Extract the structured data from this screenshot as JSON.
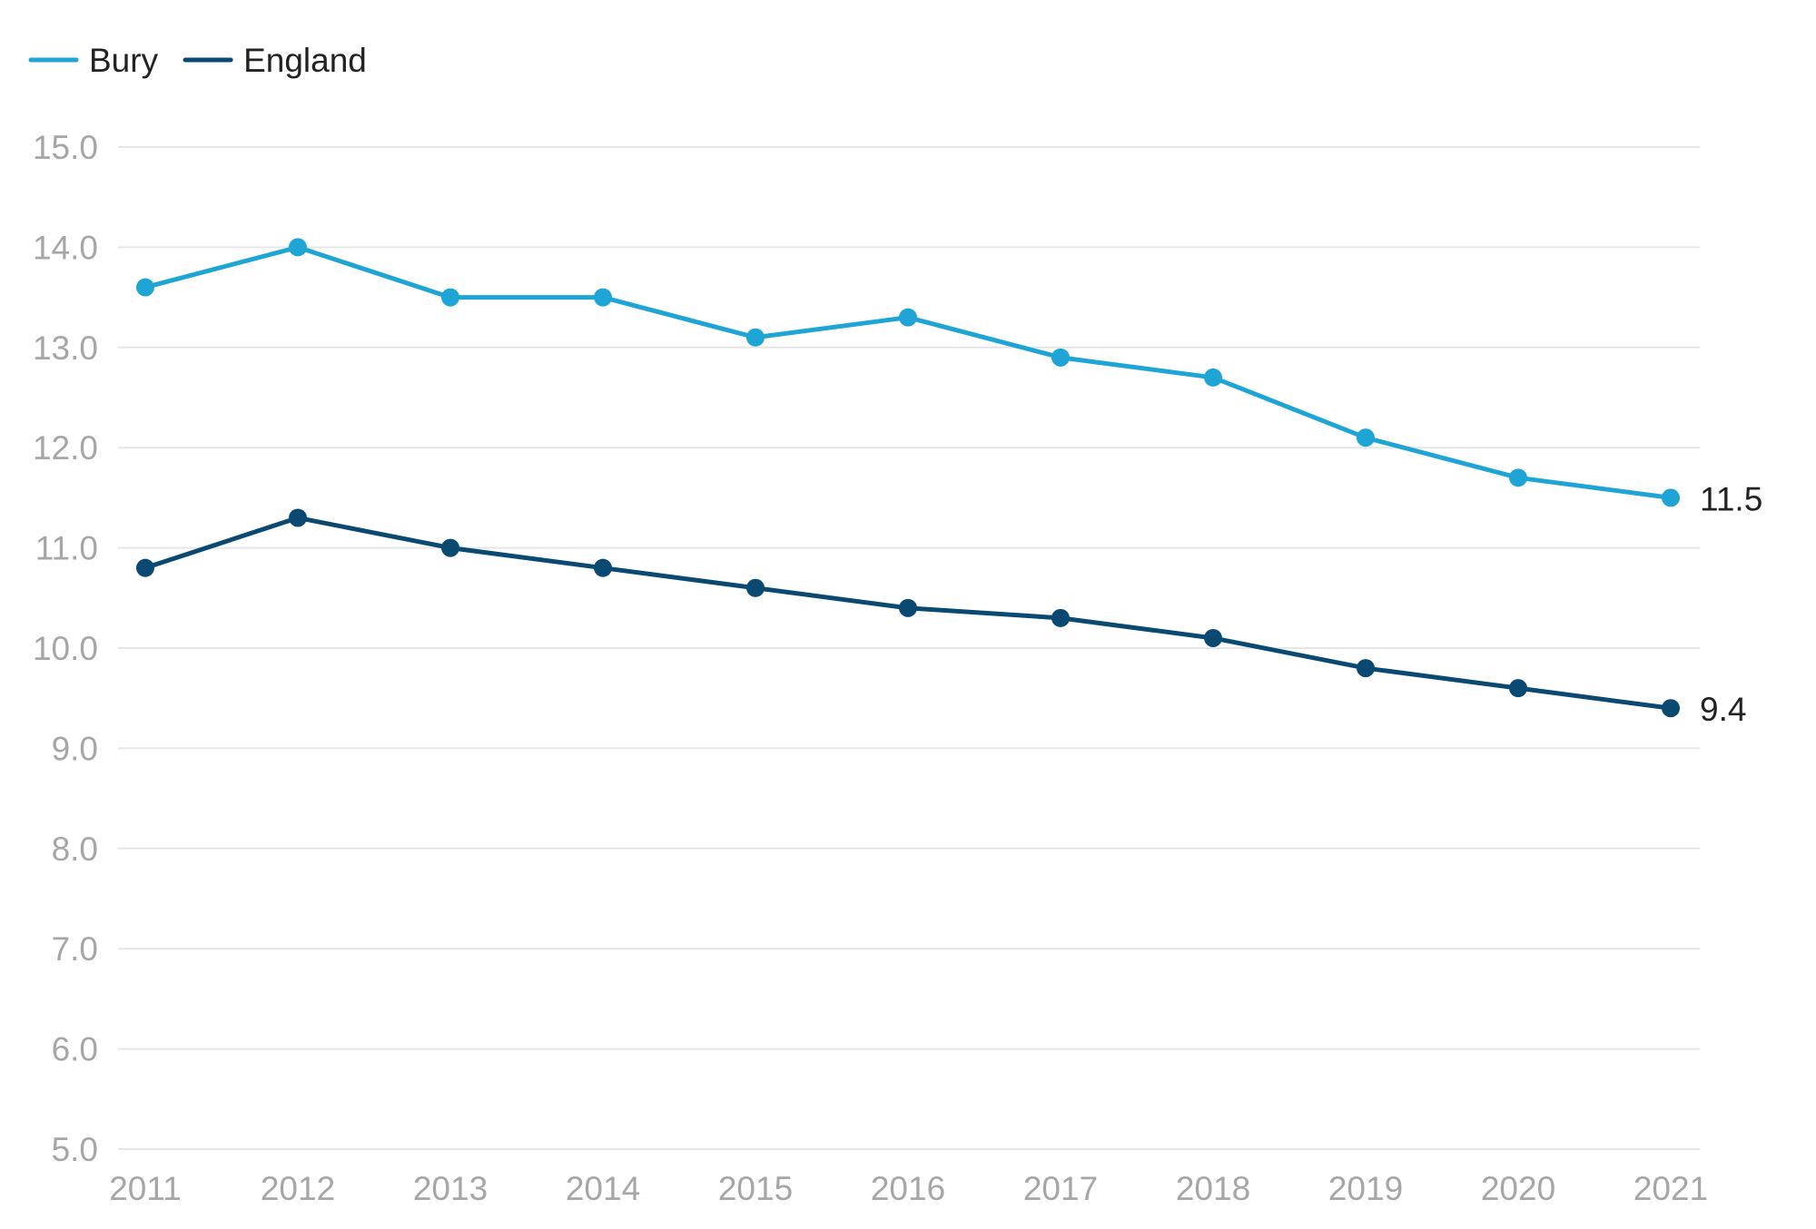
{
  "chart_data": {
    "type": "line",
    "x": [
      "2011",
      "2012",
      "2013",
      "2014",
      "2015",
      "2016",
      "2017",
      "2018",
      "2019",
      "2020",
      "2021"
    ],
    "series": [
      {
        "name": "Bury",
        "color": "#1fa4d6",
        "values": [
          13.6,
          14.0,
          13.5,
          13.5,
          13.1,
          13.3,
          12.9,
          12.7,
          12.1,
          11.7,
          11.5
        ],
        "end_label": "11.5"
      },
      {
        "name": "England",
        "color": "#0a4a72",
        "values": [
          10.8,
          11.3,
          11.0,
          10.8,
          10.6,
          10.4,
          10.3,
          10.1,
          9.8,
          9.6,
          9.4
        ],
        "end_label": "9.4"
      }
    ],
    "ylim": [
      5.0,
      15.0
    ],
    "yticks": [
      "5.0",
      "6.0",
      "7.0",
      "8.0",
      "9.0",
      "10.0",
      "11.0",
      "12.0",
      "13.0",
      "14.0",
      "15.0"
    ],
    "grid": true,
    "legend_position": "top-left",
    "title": "",
    "xlabel": "",
    "ylabel": ""
  }
}
